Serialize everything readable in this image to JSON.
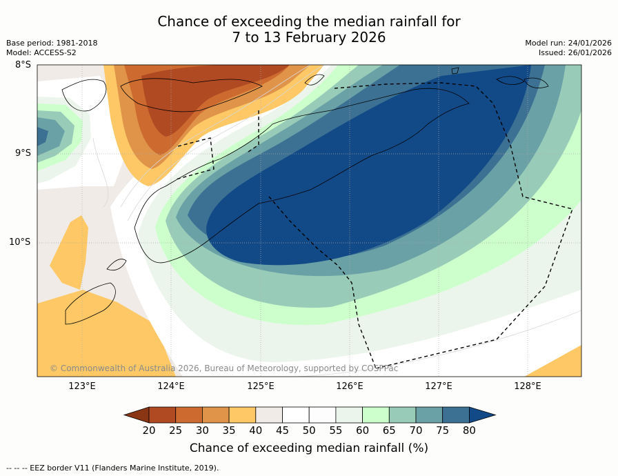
{
  "title": {
    "line1": "Chance of exceeding the median rainfall for",
    "line2": "7 to 13 February 2026"
  },
  "meta": {
    "base_period": "Base period: 1981-2018",
    "model": "Model: ACCESS-S2",
    "model_run": "Model run: 24/01/2026",
    "issued": "Issued: 26/01/2026"
  },
  "map": {
    "lat_labels": [
      "8°S",
      "9°S",
      "10°S"
    ],
    "lon_labels": [
      "123°E",
      "124°E",
      "125°E",
      "126°E",
      "127°E",
      "128°E"
    ],
    "copyright": "© Commonwealth of Australia 2026, Bureau of Meteorology, supported by COSPPac"
  },
  "colorbar": {
    "ticks": [
      "20",
      "25",
      "30",
      "35",
      "40",
      "45",
      "50",
      "55",
      "60",
      "65",
      "70",
      "75",
      "80"
    ],
    "colors": [
      "#8a3514",
      "#b04a22",
      "#cd6a30",
      "#e0944a",
      "#fdc865",
      "#f0ebe6",
      "#ffffff",
      "#fdfdfd",
      "#ecf5ec",
      "#ccffcc",
      "#99ccb8",
      "#6aa1a6",
      "#3c7193",
      "#124a88"
    ],
    "title": "Chance of exceeding median rainfall (%)"
  },
  "footnote": "--  --  -- EEZ border V11 (Flanders Marine Institute, 2019)."
}
